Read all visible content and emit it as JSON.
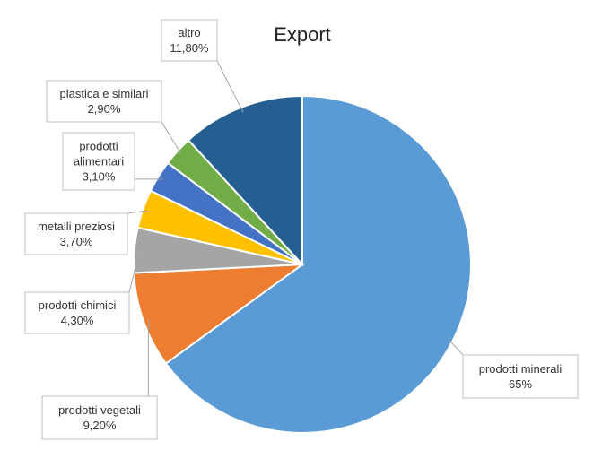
{
  "chart_data": {
    "type": "pie",
    "title": "Export",
    "slices": [
      {
        "label": "prodotti minerali",
        "value_text": "65%",
        "value": 65.0,
        "color": "#5b9bd5"
      },
      {
        "label": "prodotti vegetali",
        "value_text": "9,20%",
        "value": 9.2,
        "color": "#ed7d31"
      },
      {
        "label": "prodotti chimici",
        "value_text": "4,30%",
        "value": 4.3,
        "color": "#a5a5a5"
      },
      {
        "label": "metalli preziosi",
        "value_text": "3,70%",
        "value": 3.7,
        "color": "#ffc000"
      },
      {
        "label": "prodotti alimentari",
        "value_text": "3,10%",
        "value": 3.1,
        "color": "#4472c4"
      },
      {
        "label": "plastica e similari",
        "value_text": "2,90%",
        "value": 2.9,
        "color": "#70ad47"
      },
      {
        "label": "altro",
        "value_text": "11,80%",
        "value": 11.8,
        "color": "#255e91"
      }
    ],
    "legend": "none",
    "data_labels": "callouts"
  }
}
